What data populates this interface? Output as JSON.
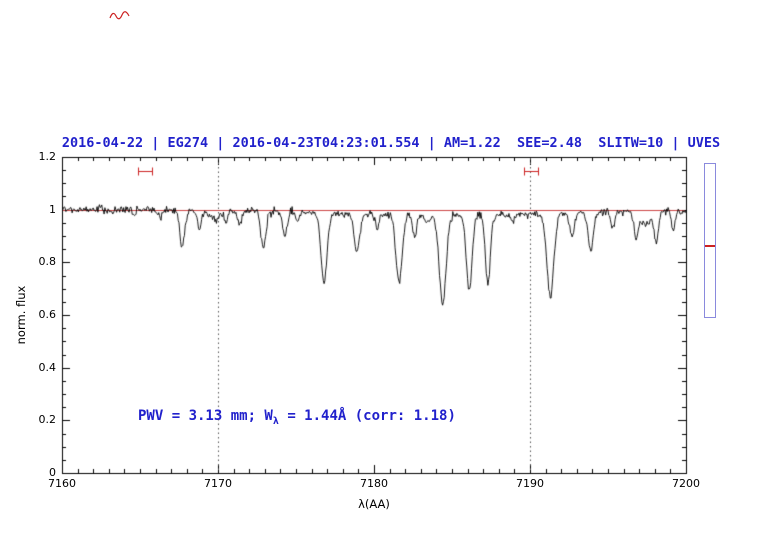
{
  "colors": {
    "accent_blue": "#2121cc",
    "spectrum": "#000000",
    "continuum_red": "#cc4444",
    "marker_red": "#cc2222",
    "gauge_border": "#8a8add",
    "gauge_line": "#cc2222",
    "axis": "#000000",
    "dotted_line": "#555555"
  },
  "chart_data": {
    "type": "line",
    "title": "2016-04-22 | EG274 | 2016-04-23T04:23:01.554 | AM=1.22  SEE=2.48  SLITW=10 | UVES",
    "xlabel": "λ(AA)",
    "ylabel": "norm. flux",
    "xlim": [
      7160,
      7200
    ],
    "ylim": [
      0,
      1.2
    ],
    "x_ticks": [
      7160,
      7170,
      7180,
      7190,
      7200
    ],
    "y_ticks": [
      0,
      0.2,
      0.4,
      0.6,
      0.8,
      1,
      1.2
    ],
    "y_tick_labels": [
      "0",
      "0.2",
      "0.4",
      "0.6",
      "0.8",
      "1",
      "1.2"
    ],
    "grid": false,
    "continuum_level": 1.0,
    "noise_sigma": 0.007,
    "sampling_step_angstrom": 0.05,
    "series_model": "flux(λ) = continuum − Σ depth·exp(−(λ−center)²/2σ²) + gaussian noise",
    "dotted_vlines_x": [
      7170,
      7190
    ],
    "absorption_lines": [
      {
        "center": 7163.2,
        "depth": 0.015,
        "sigma": 0.1
      },
      {
        "center": 7164.6,
        "depth": 0.02,
        "sigma": 0.1
      },
      {
        "center": 7166.3,
        "depth": 0.025,
        "sigma": 0.12
      },
      {
        "center": 7167.7,
        "depth": 0.13,
        "sigma": 0.16
      },
      {
        "center": 7168.8,
        "depth": 0.07,
        "sigma": 0.12
      },
      {
        "center": 7169.8,
        "depth": 0.035,
        "sigma": 0.3
      },
      {
        "center": 7170.5,
        "depth": 0.045,
        "sigma": 0.1
      },
      {
        "center": 7171.4,
        "depth": 0.06,
        "sigma": 0.12
      },
      {
        "center": 7172.9,
        "depth": 0.14,
        "sigma": 0.16
      },
      {
        "center": 7174.3,
        "depth": 0.09,
        "sigma": 0.14
      },
      {
        "center": 7175.1,
        "depth": 0.04,
        "sigma": 0.1
      },
      {
        "center": 7176.8,
        "depth": 0.26,
        "sigma": 0.2
      },
      {
        "center": 7178.9,
        "depth": 0.14,
        "sigma": 0.18
      },
      {
        "center": 7180.2,
        "depth": 0.05,
        "sigma": 0.12
      },
      {
        "center": 7181.6,
        "depth": 0.26,
        "sigma": 0.2
      },
      {
        "center": 7182.6,
        "depth": 0.09,
        "sigma": 0.12
      },
      {
        "center": 7183.4,
        "depth": 0.03,
        "sigma": 0.15
      },
      {
        "center": 7184.4,
        "depth": 0.34,
        "sigma": 0.22
      },
      {
        "center": 7186.1,
        "depth": 0.29,
        "sigma": 0.18
      },
      {
        "center": 7187.3,
        "depth": 0.26,
        "sigma": 0.16
      },
      {
        "center": 7188.9,
        "depth": 0.03,
        "sigma": 0.1
      },
      {
        "center": 7191.3,
        "depth": 0.31,
        "sigma": 0.22
      },
      {
        "center": 7192.7,
        "depth": 0.1,
        "sigma": 0.14
      },
      {
        "center": 7193.9,
        "depth": 0.15,
        "sigma": 0.16
      },
      {
        "center": 7195.3,
        "depth": 0.06,
        "sigma": 0.12
      },
      {
        "center": 7196.8,
        "depth": 0.1,
        "sigma": 0.14
      },
      {
        "center": 7197.4,
        "depth": 0.05,
        "sigma": 0.3
      },
      {
        "center": 7198.1,
        "depth": 0.12,
        "sigma": 0.14
      },
      {
        "center": 7199.2,
        "depth": 0.07,
        "sigma": 0.12
      },
      {
        "center": 7185.0,
        "depth": 0.02,
        "sigma": 8.0
      }
    ],
    "range_markers": [
      {
        "x_start": 7164.9,
        "x_end": 7165.8,
        "y": 1.147
      },
      {
        "x_start": 7189.6,
        "x_end": 7190.5,
        "y": 1.147
      }
    ],
    "annotation": {
      "prefix": "PWV = 3.13 mm; W",
      "subscript": "λ",
      "suffix": " = 1.44Å (corr: 1.18)"
    },
    "side_gauge": {
      "red_line_fraction": 0.53
    }
  }
}
